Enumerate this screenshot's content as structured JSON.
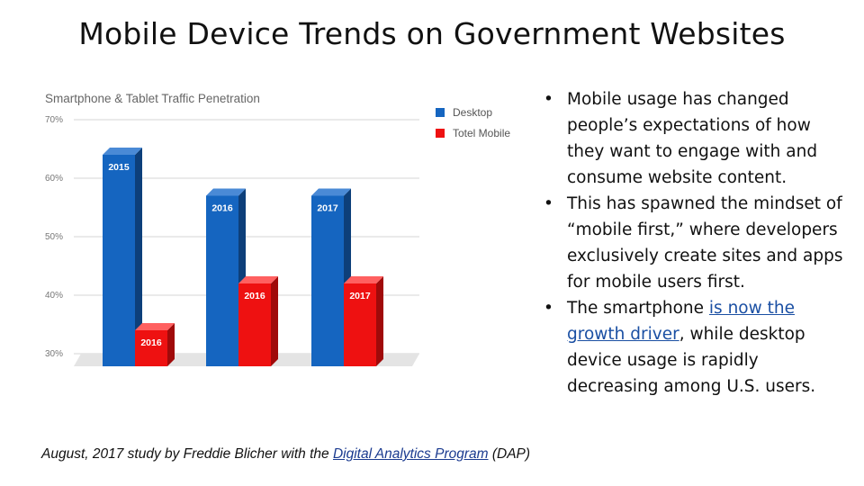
{
  "slide": {
    "title": "Mobile Device Trends on Government Websites"
  },
  "bullets": [
    {
      "text": "Mobile usage has changed people’s expectations of how they want to engage with and consume website content."
    },
    {
      "text": "This has spawned the mindset of “mobile first,” where developers exclusively create sites and apps for mobile users first."
    },
    {
      "before": "The smartphone ",
      "link": "is now the growth driver",
      "after": ", while desktop device usage is rapidly decreasing among U.S. users."
    }
  ],
  "footnote": {
    "before": "August, 2017 study by Freddie Blicher with the ",
    "link": "Digital Analytics Program",
    "after": " (DAP)"
  },
  "chart_data": {
    "type": "bar",
    "title": "Smartphone & Tablet Traffic Penetration",
    "y_ticks": [
      "70%",
      "60%",
      "50%",
      "40%",
      "30%"
    ],
    "ylim": [
      30,
      70
    ],
    "legend_position": "top-right",
    "grid": true,
    "groups": [
      {
        "bars": [
          {
            "series": "Desktop",
            "label": "2015",
            "value": 64
          },
          {
            "series": "Totel Mobile",
            "label": "2016",
            "value": 34
          }
        ]
      },
      {
        "bars": [
          {
            "series": "Desktop",
            "label": "2016",
            "value": 57
          },
          {
            "series": "Totel Mobile",
            "label": "2016",
            "value": 42
          }
        ]
      },
      {
        "bars": [
          {
            "series": "Desktop",
            "label": "2017",
            "value": 57
          },
          {
            "series": "Totel Mobile",
            "label": "2017",
            "value": 42
          }
        ]
      }
    ],
    "series": [
      {
        "name": "Desktop",
        "color": "#1565c0"
      },
      {
        "name": "Totel Mobile",
        "color": "#ee1111"
      }
    ]
  }
}
